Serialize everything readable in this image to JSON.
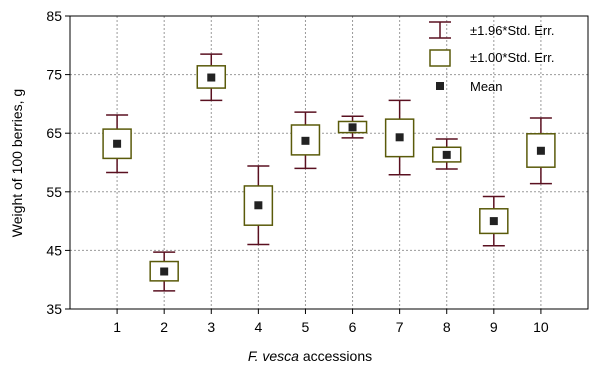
{
  "chart_data": {
    "type": "box",
    "title": "",
    "xlabel": {
      "italic": "F. vesca",
      "rest": " accessions"
    },
    "ylabel": "Weight of 100 berries, g",
    "ylim": [
      35,
      85
    ],
    "yticks": [
      35,
      45,
      55,
      65,
      75,
      85
    ],
    "categories": [
      "1",
      "2",
      "3",
      "4",
      "5",
      "6",
      "7",
      "8",
      "9",
      "10"
    ],
    "series": [
      {
        "name": "Mean",
        "values": [
          63.2,
          41.4,
          74.5,
          52.7,
          63.7,
          66.0,
          64.3,
          61.3,
          50.0,
          62.0
        ]
      },
      {
        "name": "±1.00*Std. Err.",
        "low": [
          60.7,
          39.8,
          72.7,
          49.3,
          61.3,
          65.1,
          61.0,
          60.1,
          47.9,
          59.2
        ],
        "high": [
          65.7,
          43.1,
          76.5,
          56.0,
          66.4,
          67.0,
          67.4,
          62.6,
          52.1,
          64.9
        ]
      },
      {
        "name": "±1.96*Std. Err.",
        "low": [
          58.3,
          38.1,
          70.6,
          46.0,
          59.0,
          64.2,
          57.9,
          58.9,
          45.8,
          56.4
        ],
        "high": [
          68.1,
          44.7,
          78.5,
          59.4,
          68.6,
          67.9,
          70.6,
          64.0,
          54.2,
          67.6
        ]
      }
    ],
    "legend_position": "top-right",
    "grid": true,
    "colors": {
      "whisker": "#5a1020",
      "box": "#5a5a0a",
      "mean": "#222222",
      "grid": "#9a9a9a"
    }
  }
}
